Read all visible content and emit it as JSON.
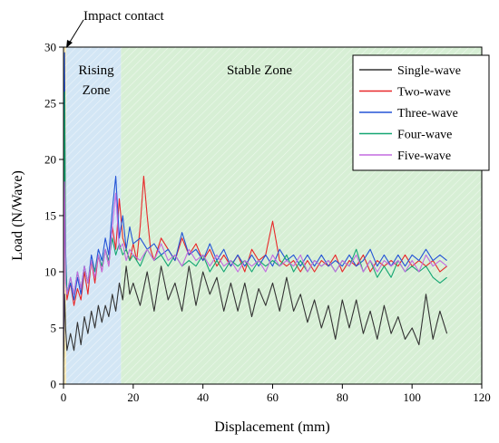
{
  "chart_data": {
    "type": "line",
    "xlabel": "Displacement (mm)",
    "ylabel": "Load (N/Wave)",
    "xlim": [
      0,
      120
    ],
    "ylim": [
      0,
      30
    ],
    "xticks": [
      0,
      20,
      40,
      60,
      80,
      100,
      120
    ],
    "yticks": [
      0,
      5,
      10,
      15,
      20,
      25,
      30
    ],
    "grid": false,
    "legend_position": "top-right",
    "zones": [
      {
        "name": "impact",
        "x": [
          0,
          0.8
        ],
        "color": "#f7e9b8"
      },
      {
        "name": "rising",
        "x": [
          0.8,
          16.5
        ],
        "color": "#d3e6f5"
      },
      {
        "name": "stable",
        "x": [
          16.5,
          120
        ],
        "color": "#d7efd5"
      }
    ],
    "annotations": {
      "impact": "Impact contact",
      "rising_line1": "Rising",
      "rising_line2": "Zone",
      "stable": "Stable  Zone"
    },
    "series": [
      {
        "name": "Single-wave",
        "color": "#333333",
        "x": [
          0,
          0.3,
          0.6,
          1,
          2,
          3,
          4,
          5,
          6,
          7,
          8,
          9,
          10,
          11,
          12,
          13,
          14,
          15,
          16,
          17,
          18,
          19,
          20,
          22,
          24,
          26,
          28,
          30,
          32,
          34,
          36,
          38,
          40,
          42,
          44,
          46,
          48,
          50,
          52,
          54,
          56,
          58,
          60,
          62,
          64,
          66,
          68,
          70,
          72,
          74,
          76,
          78,
          80,
          82,
          84,
          86,
          88,
          90,
          92,
          94,
          96,
          98,
          100,
          102,
          104,
          106,
          108,
          110
        ],
        "y": [
          2,
          8,
          5,
          3,
          4.5,
          3,
          5.5,
          3.5,
          6,
          4.5,
          6.5,
          5,
          7,
          5.5,
          7,
          6,
          8,
          6.5,
          9,
          7.5,
          10.5,
          8,
          9,
          7,
          10,
          6.5,
          10.5,
          7.5,
          9,
          6.5,
          10.5,
          7,
          10,
          8,
          9.5,
          6.5,
          9,
          6.5,
          9,
          6,
          8.5,
          7,
          9,
          6.5,
          9.5,
          6.5,
          8,
          5.5,
          7.5,
          5,
          7,
          4,
          7.5,
          5,
          7.5,
          4.5,
          6.5,
          4,
          7,
          4.5,
          6,
          4,
          5,
          3.5,
          8,
          4,
          6.5,
          4.5
        ]
      },
      {
        "name": "Two-wave",
        "color": "#e8282a",
        "x": [
          0,
          0.3,
          0.6,
          1,
          2,
          3,
          4,
          5,
          6,
          7,
          8,
          9,
          10,
          11,
          12,
          13,
          14,
          15,
          16,
          17,
          18,
          19,
          20,
          21,
          22,
          23,
          24,
          25,
          26,
          28,
          30,
          32,
          34,
          36,
          38,
          40,
          42,
          44,
          46,
          48,
          50,
          52,
          54,
          56,
          58,
          60,
          62,
          64,
          66,
          68,
          70,
          72,
          74,
          76,
          78,
          80,
          82,
          84,
          86,
          88,
          90,
          92,
          94,
          96,
          98,
          100,
          102,
          104,
          106,
          108,
          110
        ],
        "y": [
          3,
          24,
          10,
          7.5,
          9,
          7,
          8.5,
          7.5,
          10,
          8,
          11,
          9,
          11.5,
          10,
          12,
          10.5,
          14,
          12,
          16.5,
          13,
          12,
          11,
          12.5,
          11,
          14,
          18.5,
          15,
          12,
          11,
          13,
          12,
          11,
          13,
          11.5,
          12.5,
          11,
          12,
          10.5,
          11.5,
          10.5,
          11.5,
          10,
          12,
          11,
          11.5,
          14.5,
          11,
          10.5,
          11,
          10,
          11,
          10,
          11,
          10.5,
          11.5,
          10,
          11,
          10.5,
          11.5,
          10,
          11,
          10.5,
          11,
          10.5,
          11.5,
          10.5,
          11,
          10.5,
          11,
          10,
          10.5
        ]
      },
      {
        "name": "Three-wave",
        "color": "#2454d6",
        "x": [
          0,
          0.3,
          0.6,
          1,
          2,
          3,
          4,
          5,
          6,
          7,
          8,
          9,
          10,
          11,
          12,
          13,
          14,
          15,
          16,
          17,
          18,
          19,
          20,
          22,
          24,
          26,
          28,
          30,
          32,
          34,
          36,
          38,
          40,
          42,
          44,
          46,
          48,
          50,
          52,
          54,
          56,
          58,
          60,
          62,
          64,
          66,
          68,
          70,
          72,
          74,
          76,
          78,
          80,
          82,
          84,
          86,
          88,
          90,
          92,
          94,
          96,
          98,
          100,
          102,
          104,
          106,
          108,
          110
        ],
        "y": [
          4,
          29.5,
          12,
          8,
          9,
          7.5,
          9.5,
          8,
          10.5,
          9,
          11.5,
          10,
          12,
          11,
          13,
          11.5,
          15.5,
          18.5,
          13,
          15,
          12,
          14,
          12.5,
          13,
          12,
          12.5,
          11.5,
          12,
          11,
          13.5,
          11.5,
          12,
          11,
          12.5,
          11,
          12,
          10.5,
          11.5,
          10.5,
          11.5,
          10.5,
          11.5,
          10.5,
          12,
          11,
          11.5,
          10.5,
          11.5,
          10.5,
          11.5,
          10.5,
          11,
          10.5,
          11.5,
          10.5,
          11,
          12,
          10.5,
          11.5,
          10.5,
          11.5,
          10.5,
          11.5,
          11,
          12,
          11,
          11.5,
          11
        ]
      },
      {
        "name": "Four-wave",
        "color": "#15a673",
        "x": [
          0,
          0.3,
          0.6,
          1,
          2,
          3,
          4,
          5,
          6,
          7,
          8,
          9,
          10,
          11,
          12,
          13,
          14,
          15,
          16,
          17,
          18,
          19,
          20,
          22,
          24,
          26,
          28,
          30,
          32,
          34,
          36,
          38,
          40,
          42,
          44,
          46,
          48,
          50,
          52,
          54,
          56,
          58,
          60,
          62,
          64,
          66,
          68,
          70,
          72,
          74,
          76,
          78,
          80,
          82,
          84,
          86,
          88,
          90,
          92,
          94,
          96,
          98,
          100,
          102,
          104,
          106,
          108,
          110
        ],
        "y": [
          3,
          26,
          11,
          8,
          9.5,
          8,
          10,
          8.5,
          10.5,
          9,
          11,
          10,
          11.5,
          10.5,
          12,
          11,
          13,
          11.5,
          12.5,
          11.5,
          12,
          11,
          11.5,
          10.5,
          12,
          11,
          11.5,
          10.5,
          11.5,
          10.5,
          11,
          10.5,
          11.5,
          10,
          11,
          10,
          11,
          10.5,
          11,
          10,
          11,
          10.5,
          11,
          10.5,
          11.5,
          10,
          11,
          10,
          11,
          10.5,
          11,
          10,
          11,
          10.5,
          12,
          10,
          11,
          9.5,
          10.5,
          9.5,
          11,
          10,
          10.5,
          10,
          10.5,
          9.5,
          9,
          9.5
        ]
      },
      {
        "name": "Five-wave",
        "color": "#c36be0",
        "x": [
          0,
          0.3,
          0.6,
          1,
          2,
          3,
          4,
          5,
          6,
          7,
          8,
          9,
          10,
          11,
          12,
          13,
          14,
          15,
          16,
          17,
          18,
          19,
          20,
          22,
          24,
          26,
          28,
          30,
          32,
          34,
          36,
          38,
          40,
          42,
          44,
          46,
          48,
          50,
          52,
          54,
          56,
          58,
          60,
          62,
          64,
          66,
          68,
          70,
          72,
          74,
          76,
          78,
          80,
          82,
          84,
          86,
          88,
          90,
          92,
          94,
          96,
          98,
          100,
          102,
          104,
          106,
          108,
          110
        ],
        "y": [
          3,
          18,
          9,
          8,
          9.5,
          8,
          10,
          8.5,
          10.5,
          9,
          11,
          9.5,
          11.5,
          10,
          12,
          10.5,
          14,
          17,
          12,
          12.5,
          11,
          12,
          11.5,
          11,
          12,
          11,
          12.5,
          11,
          11.5,
          10.5,
          12,
          11,
          11.5,
          10.5,
          11.5,
          10.5,
          11,
          10,
          11,
          10.5,
          11,
          10,
          11.5,
          10.5,
          11,
          10.5,
          11.5,
          10,
          11,
          10.5,
          11,
          10,
          11,
          10.5,
          11.5,
          10,
          11,
          10,
          11,
          10.5,
          11,
          10,
          11,
          10,
          11.5,
          10.5,
          11,
          10.5
        ]
      }
    ]
  }
}
